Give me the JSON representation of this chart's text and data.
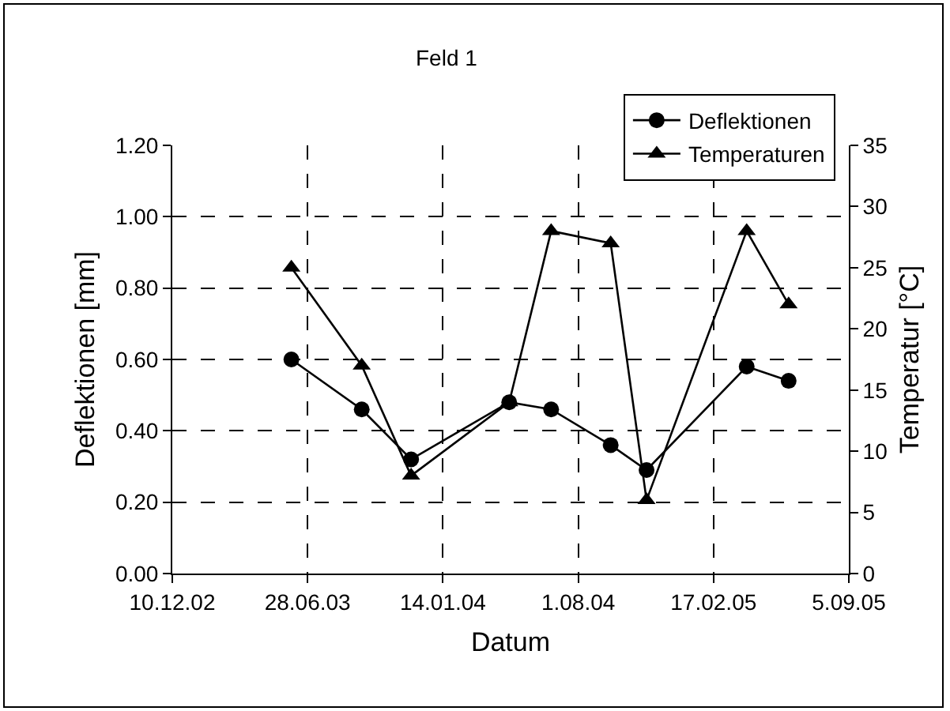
{
  "chart_data": {
    "type": "line",
    "title": "Feld 1",
    "xlabel": "Datum",
    "ylabel": "Deflektionen [mm]",
    "y2label": "Temperatur [°C]",
    "x": [
      "2003-06-04",
      "2003-09-16",
      "2003-11-28",
      "2004-04-21",
      "2004-06-22",
      "2004-09-18",
      "2004-11-10",
      "2005-04-07",
      "2005-06-08"
    ],
    "series": [
      {
        "name": "Deflektionen",
        "color": "#000000",
        "marker": "circle",
        "values": [
          0.6,
          0.46,
          0.32,
          0.48,
          0.46,
          0.36,
          0.29,
          0.58,
          0.54
        ]
      },
      {
        "name": "Temperaturen",
        "color": "#000000",
        "marker": "triangle",
        "axis": "y2",
        "values": [
          25,
          17,
          8,
          14,
          28,
          27,
          6,
          28,
          22
        ]
      }
    ],
    "xlim": [
      "2002-12-10",
      "2005-09-05"
    ],
    "xticks": [
      {
        "value": "2002-12-10",
        "label": "10.12.02"
      },
      {
        "value": "2003-06-28",
        "label": "28.06.03"
      },
      {
        "value": "2004-01-14",
        "label": "14.01.04"
      },
      {
        "value": "2004-08-01",
        "label": "1.08.04"
      },
      {
        "value": "2005-02-17",
        "label": "17.02.05"
      },
      {
        "value": "2005-09-05",
        "label": "5.09.05"
      }
    ],
    "ylim": [
      0,
      1.2
    ],
    "yticks": [
      {
        "value": 0,
        "label": "0.00"
      },
      {
        "value": 0.2,
        "label": "0.20"
      },
      {
        "value": 0.4,
        "label": "0.40"
      },
      {
        "value": 0.6,
        "label": "0.60"
      },
      {
        "value": 0.8,
        "label": "0.80"
      },
      {
        "value": 1,
        "label": "1.00"
      },
      {
        "value": 1.2,
        "label": "1.20"
      }
    ],
    "y2lim": [
      0,
      35
    ],
    "y2ticks": [
      0,
      5,
      10,
      15,
      20,
      25,
      30,
      35
    ],
    "grid": true,
    "legend": "top right",
    "line_style": "solid"
  }
}
